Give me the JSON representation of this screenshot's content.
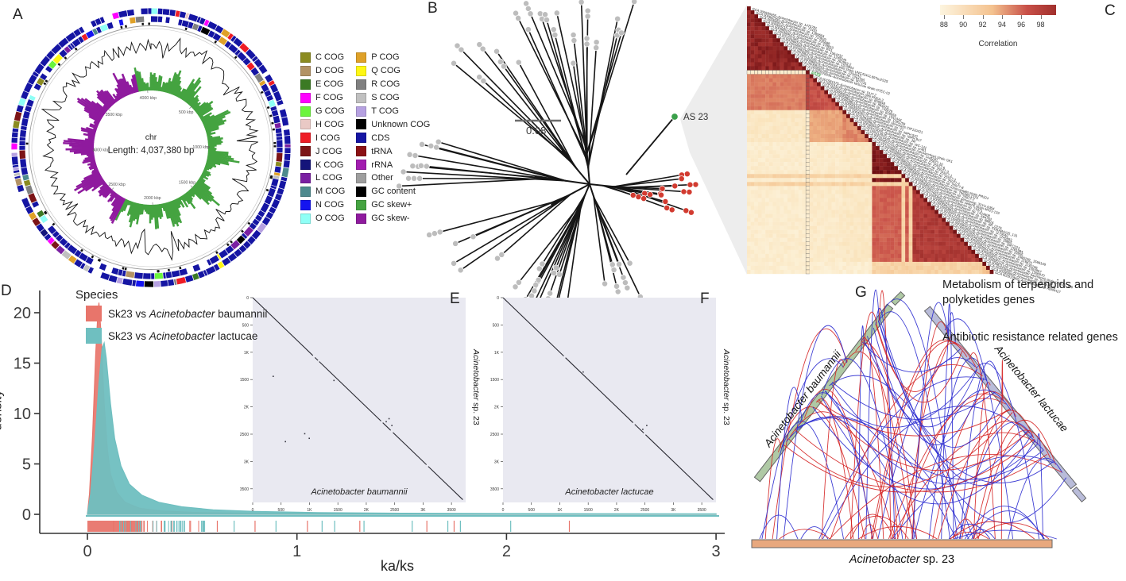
{
  "figure": {
    "letters": {
      "a": "A",
      "b": "B",
      "c": "C",
      "d": "D",
      "e": "E",
      "f": "F",
      "g": "G"
    }
  },
  "panel_a": {
    "center": {
      "line1": "chr",
      "line2": "Length: 4,037,380 bp"
    },
    "genome_length_bp": 4037380,
    "ring_ticks": [
      "500 kbp",
      "1000 kbp",
      "1500 kbp",
      "2000 kbp",
      "2500 kbp",
      "3000 kbp",
      "3500 kbp",
      "4000 kbp"
    ],
    "ring_tick_kbp": [
      500,
      1000,
      1500,
      2000,
      2500,
      3000,
      3500,
      4000
    ],
    "legend_col1": [
      {
        "label": "C COG",
        "color": "#8B8B20"
      },
      {
        "label": "D COG",
        "color": "#B29264"
      },
      {
        "label": "E COG",
        "color": "#3B7A24"
      },
      {
        "label": "F COG",
        "color": "#FF00FF"
      },
      {
        "label": "G COG",
        "color": "#6BF43C"
      },
      {
        "label": "H COG",
        "color": "#E9C9C5"
      },
      {
        "label": "I COG",
        "color": "#EE1C25"
      },
      {
        "label": "J COG",
        "color": "#7C1416"
      },
      {
        "label": "K COG",
        "color": "#14147A"
      },
      {
        "label": "L COG",
        "color": "#7A1FA2"
      },
      {
        "label": "M COG",
        "color": "#4E8A8E"
      },
      {
        "label": "N COG",
        "color": "#1414F0"
      },
      {
        "label": "O COG",
        "color": "#8FFFF6"
      }
    ],
    "legend_col2": [
      {
        "label": "P COG",
        "color": "#DFA128"
      },
      {
        "label": "Q COG",
        "color": "#FFF714"
      },
      {
        "label": "R COG",
        "color": "#808080"
      },
      {
        "label": "S COG",
        "color": "#C0C0C0"
      },
      {
        "label": "T COG",
        "color": "#B6A1E1"
      },
      {
        "label": "Unknown COG",
        "color": "#000000"
      },
      {
        "label": "CDS",
        "color": "#1515A3"
      },
      {
        "label": "tRNA",
        "color": "#8B1114"
      },
      {
        "label": "rRNA",
        "color": "#A21CAF"
      },
      {
        "label": "Other",
        "color": "#9E9E9E"
      },
      {
        "label": "GC content",
        "color": "#000000"
      },
      {
        "label": "GC skew+",
        "color": "#44A340"
      },
      {
        "label": "GC skew-",
        "color": "#8F1A9E"
      }
    ]
  },
  "panel_b": {
    "scale_label": "0.08",
    "highlight_tip": "AS 23",
    "colors": {
      "tip": "#BDBDBD",
      "cluster": "#D23B30",
      "highlight": "#3AA04A"
    }
  },
  "panel_c": {
    "colorbar": {
      "title": "Correlation",
      "ticks": [
        88,
        90,
        92,
        94,
        96,
        98
      ],
      "color_low": "#FDF5DF",
      "color_high": "#A1302D"
    },
    "highlight_label": "AS23",
    "highlight_index": 16,
    "row_labels": [
      "GCA 000580955–Acinetobacter sp. 1475781",
      "GCA 000682355–Acinetobacter sp. 72431",
      "GCA 000585675–Acinetobacter sp. 1289694",
      "GCA 000584215–Acinetobacter sp. 723929",
      "GCA 000588415–Acinetobacter sp. 225688",
      "GCA 000584015–Acinetobacter sp. 478810",
      "GCA 002251565–Acinetobacter sp. BS1",
      "GCA 000584515–Acinetobacter sp. 1564232",
      "GCA 000584575–Acinetobacter sp. 1245249",
      "GCA 000583395–Acinetobacter sp. 263903-2",
      "GCA 000582075–Acinetobacter sp. 1578804",
      "GCA 900110535–Acinetobacter pittii strain UNC434CL69Tsu2S25",
      "GCA 000588015–Acinetobacter sp. 1294243",
      "GCA 000681815–Acinetobacter sp. 1264765",
      "GCA 000582195–Acinetobacter sp. 907131",
      "GCA 002076935–Acinetobacter lactucae strain OTEC-02",
      "AS23",
      "GCA 001581975–Acinetobacter sp. DUT-2",
      "GCA 000191145–Acinetobacter pittii PHEA-2",
      "GCA 000581275–Acinetobacter sp. 809848",
      "GCA 000588395–Acinetobacter sp. 883425",
      "GCA 000588535–Acinetobacter sp. 742879",
      "GCA 000588515–Acinetobacter sp. 829659",
      "GCA 000581835–Acinetobacter sp. 1542444",
      "GCA 000581935–Acinetobacter sp. 1295259",
      "GCA 000495275–Acinetobacter oleivorans CIP110421",
      "GCA 001186385–Acinetobacter sp. V2",
      "GCA 000369825–Acinetobacter sp. NIPH 542",
      "GCA 000368405–Acinetobacter sp. NIPH 817",
      "GCA 003410005–Acinetobacter sp. JW",
      "GCA 000313935–Acinetobacter sp. WC-141",
      "GCA 900110445–Acinetobacter sp. yr461",
      "GCA 000852075–Acinetobacter calcoaceticus strain GK1",
      "GCA 001423205–Acinetobacter sp. Leaf130",
      "GCA 000589115–Acinetobacter sp. 25977-10",
      "GCA 000589935–Acinetobacter sp. 25977-6",
      "GCA 000589175–Acinetobacter sp. 25977-3",
      "GCA 000589311–Acinetobacter sp. 25977-1",
      "GCA 000589155–Acinetobacter sp. 25977-2",
      "GCA 000589515–Acinetobacter sp. 25977-4",
      "GCA 000589535–Acinetobacter sp. 25977-8",
      "GCA 002137515–Acinetobacter nosocomialis strain PR324",
      "GCA 000582615–Acinetobacter sp. 796365-1375",
      "GCA 000589255–Acinetobacter sp. 25977-7",
      "GCA 001990725–Acinetobacter genomosp. 33YU A354",
      "GCA 002795375–Acinetobacter seifertii strain M421-133",
      "GCA 000580675–Acinetobacter sp. 21871",
      "GCA 000588255–Acinetobacter sp. 1424608",
      "GCA 000584255–Acinetobacter sp. 694762",
      "GCA 000588335–Acinetobacter sp. 88816",
      "GCA 003000135–Acinetobacter sp. AR_0276",
      "GCA 001441615–Acinetobacter sp. FDAARGOS_131",
      "GCA 000587935–Acinetobacter sp. 1179049",
      "GCA 000584415–Acinetobacter sp. 1245693",
      "GCA 000582035–Acinetobacter sp. 29805",
      "GCA 000330575–Acinetobacter sp. OIFC021",
      "GCA 000549095–Acinetobacter sp. 1281984",
      "GCA 000582095–Acinetobacter sp. 29905",
      "GCA 000582275–Acinetobacter sp. 1566109 . 1566109",
      "GCA 000584795–Acinetobacter sp. 216872",
      "GCA 000585095–Acinetobacter sp. 1130106",
      "GCA 000582315–Acinetobacter sp. 1592897",
      "GCA 000581115–Acinetobacter sp. 1396970",
      "GCA 000811325–Acinetobacter baumannii strain UH126_106",
      "GCA 003428595–Acinetobacter sp. S131434",
      "GCA 002899995–Acinetobacter sp. AKBS16",
      "GCA 002919905–Acinetobacter sp. ABNIH27"
    ]
  },
  "panel_d": {
    "legend_title": "Species",
    "legend": {
      "items": [
        {
          "pre": "Sk23 vs ",
          "italic": "Acinetobacter",
          "post": " baumannii",
          "color": "#E8756B"
        },
        {
          "pre": "Sk23 vs ",
          "italic": "Acinetobacter",
          "post": " lactucae",
          "color": "#6FBFC0"
        }
      ]
    },
    "xlabel": "ka/ks",
    "ylabel": "density",
    "xticks": [
      "0",
      "1",
      "2",
      "3"
    ],
    "yticks": [
      "0",
      "5",
      "10",
      "15",
      "20"
    ]
  },
  "panel_e": {
    "xlabel": {
      "italic": "Acinetobacter baumannii"
    },
    "ylabel_right": {
      "italic": "Acinetobacter",
      "post": " sp. 23"
    },
    "ticks": [
      "0",
      "500",
      "1K",
      "1500",
      "2K",
      "2500",
      "3K",
      "3500"
    ]
  },
  "panel_f": {
    "xlabel": {
      "italic": "Acinetobacter lactucae"
    },
    "ylabel_right": {
      "italic": "Acinetobacter",
      "post": " sp. 23"
    },
    "ticks": [
      "0",
      "500",
      "1K",
      "1500",
      "2K",
      "2500",
      "3K",
      "3500"
    ]
  },
  "panel_g": {
    "annotation1": "Metabolism of terpenoids and polyketides genes",
    "annotation2": "Antibiotic resistance related genes",
    "bars": {
      "left": {
        "italic": "Acinetobacter baumannii",
        "color": "#AFC9A5"
      },
      "right": {
        "italic": "Acinetobacter lactucae",
        "color": "#B9BCD9"
      },
      "bottom": {
        "italic": "Acinetobacter",
        "post": " sp. 23",
        "color": "#E8A87E"
      }
    },
    "link_colors": {
      "red": "#D42020",
      "blue": "#2A2ACF"
    }
  },
  "chart_data": [
    {
      "id": "kaks_density",
      "type": "area",
      "xlabel": "ka/ks",
      "ylabel": "density",
      "xlim": [
        0,
        3
      ],
      "ylim": [
        0,
        21
      ],
      "xticks": [
        0,
        1,
        2,
        3
      ],
      "yticks": [
        0,
        5,
        10,
        15,
        20
      ],
      "legend_title": "Species",
      "legend_position": "top-left",
      "grid": false,
      "series": [
        {
          "name": "Sk23 vs Acinetobacter baumannii",
          "color": "#E8756B",
          "peak": 21,
          "points": [
            [
              0,
              0
            ],
            [
              0.01,
              2
            ],
            [
              0.025,
              8
            ],
            [
              0.04,
              16
            ],
            [
              0.05,
              20
            ],
            [
              0.055,
              21
            ],
            [
              0.065,
              18
            ],
            [
              0.08,
              11
            ],
            [
              0.095,
              6.5
            ],
            [
              0.11,
              4
            ],
            [
              0.14,
              2.2
            ],
            [
              0.18,
              1.2
            ],
            [
              0.25,
              0.6
            ],
            [
              0.35,
              0.35
            ],
            [
              0.5,
              0.2
            ],
            [
              0.7,
              0.12
            ],
            [
              1,
              0.08
            ],
            [
              1.5,
              0.05
            ],
            [
              2,
              0.04
            ],
            [
              2.5,
              0.03
            ],
            [
              3,
              0.02
            ]
          ]
        },
        {
          "name": "Sk23 vs Acinetobacter lactucae",
          "color": "#6FBFC0",
          "peak": 17,
          "points": [
            [
              0,
              0
            ],
            [
              0.015,
              2
            ],
            [
              0.035,
              7
            ],
            [
              0.055,
              13
            ],
            [
              0.07,
              16.5
            ],
            [
              0.08,
              17
            ],
            [
              0.09,
              15.5
            ],
            [
              0.11,
              11
            ],
            [
              0.13,
              7.5
            ],
            [
              0.16,
              4.8
            ],
            [
              0.2,
              3
            ],
            [
              0.26,
              1.9
            ],
            [
              0.34,
              1.2
            ],
            [
              0.45,
              0.75
            ],
            [
              0.6,
              0.45
            ],
            [
              0.8,
              0.28
            ],
            [
              1.1,
              0.17
            ],
            [
              1.5,
              0.11
            ],
            [
              2,
              0.08
            ],
            [
              2.5,
              0.06
            ],
            [
              3,
              0.05
            ]
          ]
        }
      ]
    },
    {
      "id": "correlation_heatmap",
      "type": "heatmap",
      "shape": "lower-triangle",
      "n_rows": 67,
      "value_range": [
        88,
        99.5
      ],
      "colorbar_ticks": [
        88,
        90,
        92,
        94,
        96,
        98
      ],
      "colorbar_title": "Correlation",
      "highlight_index": 16,
      "groups": [
        {
          "name": "pittii-lactucae",
          "rows": [
            0,
            15
          ],
          "within": 98.5
        },
        {
          "name": "AS23",
          "rows": [
            16,
            16
          ],
          "within": 99.4
        },
        {
          "name": "dut2-group",
          "rows": [
            17,
            25
          ],
          "within": 96.0
        },
        {
          "name": "oleivorans-group",
          "rows": [
            26,
            33
          ],
          "within": 94.0
        },
        {
          "name": "25977-group",
          "rows": [
            34,
            43
          ],
          "within": 99.2
        },
        {
          "name": "baumannii-group",
          "rows": [
            45,
            63
          ],
          "within": 97.3
        },
        {
          "name": "outliers",
          "rows": [
            64,
            66
          ],
          "within": 92.0
        }
      ],
      "between": {
        "g0g1": 94.5,
        "g0g2": 89.5,
        "g0g3": 89.0,
        "g0g4": 89.0,
        "g0g5": 88.8,
        "g1g2": 93.0,
        "g1g3": 89.2,
        "g1g4": 89.2,
        "g1g5": 88.8,
        "g2g3": 89.5,
        "g2g4": 89.5,
        "g2g5": 88.8,
        "g3g4": 95.5,
        "g3g5": 91.0,
        "g4g5": 91.0,
        "as23_vs_dut2": 96.8,
        "as23_vs_rest": 89.0,
        "separator_rows": [
          42,
          44
        ],
        "separator_value": 91.0
      }
    },
    {
      "id": "dotplot_baumannii",
      "type": "scatter",
      "diagonal": true,
      "xlabel": "Acinetobacter baumannii",
      "ylabel": "Acinetobacter sp. 23",
      "ticks_kb": [
        0,
        500,
        1000,
        1500,
        2000,
        2500,
        3000,
        3500
      ],
      "axis_max_kb": 3750,
      "diag_segments": [
        [
          0,
          1060
        ],
        [
          1095,
          1150
        ],
        [
          1170,
          2260
        ],
        [
          2290,
          2430
        ],
        [
          2470,
          3060
        ],
        [
          3090,
          3700
        ]
      ],
      "off_diagonal_points": [
        [
          350,
          1430
        ],
        [
          905,
          2480
        ],
        [
          985,
          2565
        ],
        [
          565,
          2625
        ],
        [
          1420,
          1505
        ],
        [
          2340,
          2260
        ],
        [
          2390,
          2205
        ],
        [
          2440,
          2330
        ]
      ]
    },
    {
      "id": "dotplot_lactucae",
      "type": "scatter",
      "diagonal": true,
      "xlabel": "Acinetobacter lactucae",
      "ylabel": "Acinetobacter sp. 23",
      "ticks_kb": [
        0,
        500,
        1000,
        1500,
        2000,
        2500,
        3000,
        3500
      ],
      "axis_max_kb": 3750,
      "diag_segments": [
        [
          0,
          1070
        ],
        [
          1100,
          2290
        ],
        [
          2320,
          2480
        ],
        [
          2510,
          3700
        ]
      ],
      "off_diagonal_points": [
        [
          1400,
          1350
        ],
        [
          2450,
          2400
        ],
        [
          2520,
          2330
        ]
      ]
    },
    {
      "id": "synteny_arcs",
      "type": "diagram",
      "nodes": [
        "Acinetobacter baumannii",
        "Acinetobacter lactucae",
        "Acinetobacter sp. 23"
      ],
      "link_classes": [
        "Metabolism of terpenoids and polyketides genes",
        "Antibiotic resistance related genes"
      ],
      "link_colors": [
        "#D42020",
        "#2A2ACF"
      ]
    },
    {
      "id": "phylogenetic_tree",
      "type": "diagram",
      "scale_bar": 0.08,
      "highlight_tip": "AS 23",
      "highlight_clade_color": "#D23B30",
      "tip_color": "#BDBDBD"
    }
  ]
}
